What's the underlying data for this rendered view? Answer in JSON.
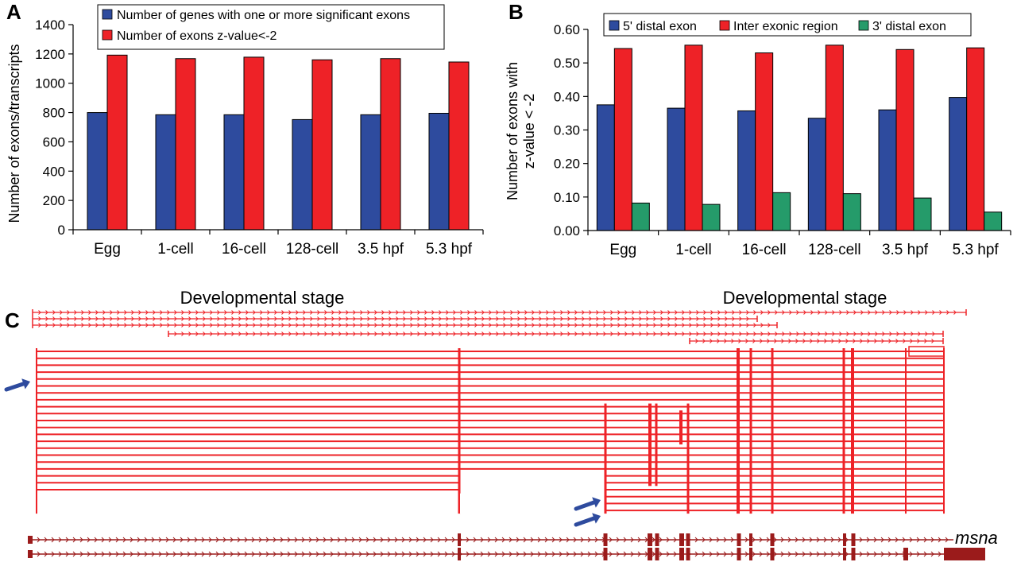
{
  "panels": {
    "a": "A",
    "b": "B",
    "c": "C"
  },
  "chart_data": [
    {
      "type": "bar",
      "panel": "A",
      "categories": [
        "Egg",
        "1-cell",
        "16-cell",
        "128-cell",
        "3.5 hpf",
        "5.3 hpf"
      ],
      "series": [
        {
          "name": "Number of genes with one or more significant exons",
          "color": "#2e4b9e",
          "values": [
            800,
            785,
            785,
            752,
            785,
            795
          ]
        },
        {
          "name": "Number of exons z-value<-2",
          "color": "#ee2227",
          "values": [
            1192,
            1168,
            1178,
            1160,
            1168,
            1145
          ]
        }
      ],
      "yticks": [
        "0",
        "200",
        "400",
        "600",
        "800",
        "1000",
        "1200",
        "1400"
      ],
      "ylim": [
        0,
        1400
      ],
      "xlabel": "Developmental stage",
      "ylabel": "Number of exons/transcripts",
      "legend": "top-left"
    },
    {
      "type": "bar",
      "panel": "B",
      "categories": [
        "Egg",
        "1-cell",
        "16-cell",
        "128-cell",
        "3.5 hpf",
        "5.3 hpf"
      ],
      "series": [
        {
          "name": "5' distal exon",
          "color": "#2e4b9e",
          "values": [
            0.375,
            0.365,
            0.357,
            0.335,
            0.36,
            0.397
          ]
        },
        {
          "name": "Inter exonic region",
          "color": "#ee2227",
          "values": [
            0.543,
            0.553,
            0.53,
            0.553,
            0.54,
            0.545
          ]
        },
        {
          "name": "3' distal exon",
          "color": "#259b6a",
          "values": [
            0.082,
            0.078,
            0.113,
            0.11,
            0.097,
            0.055
          ]
        }
      ],
      "yticks": [
        "0.00",
        "0.10",
        "0.20",
        "0.30",
        "0.40",
        "0.50",
        "0.60"
      ],
      "ylim": [
        0,
        0.6
      ],
      "xlabel": "Developmental stage",
      "ylabel_line1": "Number of exons with",
      "ylabel_line2": "z-value < -2",
      "legend": "top"
    }
  ],
  "gene_panel": {
    "gene_name": "msna",
    "transcript_color": "#ee2227",
    "gene_color": "#9b1b1b",
    "arrow_color": "#2e4b9e"
  }
}
